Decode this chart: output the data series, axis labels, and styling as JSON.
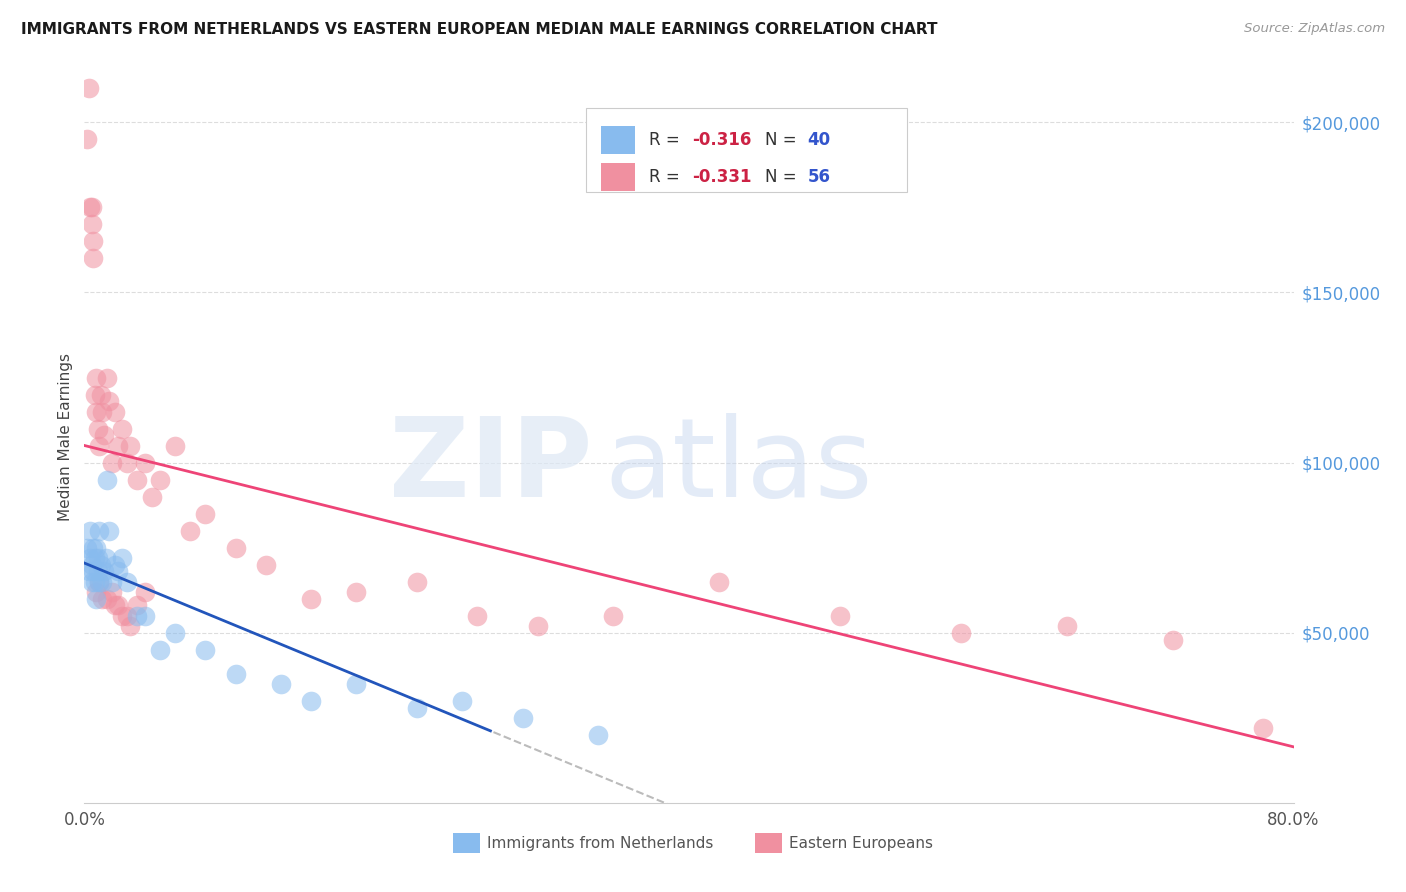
{
  "title": "IMMIGRANTS FROM NETHERLANDS VS EASTERN EUROPEAN MEDIAN MALE EARNINGS CORRELATION CHART",
  "source": "Source: ZipAtlas.com",
  "ylabel": "Median Male Earnings",
  "y_tick_labels": [
    "$200,000",
    "$150,000",
    "$100,000",
    "$50,000"
  ],
  "y_tick_values": [
    200000,
    150000,
    100000,
    50000
  ],
  "xlim": [
    0.0,
    0.8
  ],
  "ylim": [
    0,
    215000
  ],
  "blue_label": "Immigrants from Netherlands",
  "pink_label": "Eastern Europeans",
  "blue_R": "-0.316",
  "blue_N": "40",
  "pink_R": "-0.331",
  "pink_N": "56",
  "blue_color": "#88bbee",
  "pink_color": "#f090a0",
  "blue_line_color": "#2255bb",
  "pink_line_color": "#ee4477",
  "blue_scatter_x": [
    0.002,
    0.003,
    0.004,
    0.004,
    0.005,
    0.005,
    0.006,
    0.006,
    0.007,
    0.007,
    0.008,
    0.008,
    0.009,
    0.009,
    0.01,
    0.01,
    0.011,
    0.012,
    0.013,
    0.014,
    0.015,
    0.016,
    0.018,
    0.02,
    0.022,
    0.025,
    0.028,
    0.035,
    0.04,
    0.05,
    0.06,
    0.08,
    0.1,
    0.13,
    0.15,
    0.18,
    0.22,
    0.25,
    0.29,
    0.34
  ],
  "blue_scatter_y": [
    75000,
    68000,
    72000,
    80000,
    70000,
    65000,
    75000,
    68000,
    72000,
    65000,
    60000,
    75000,
    68000,
    72000,
    65000,
    80000,
    70000,
    65000,
    68000,
    72000,
    95000,
    80000,
    65000,
    70000,
    68000,
    72000,
    65000,
    55000,
    55000,
    45000,
    50000,
    45000,
    38000,
    35000,
    30000,
    35000,
    28000,
    30000,
    25000,
    20000
  ],
  "pink_scatter_x": [
    0.002,
    0.003,
    0.004,
    0.005,
    0.005,
    0.006,
    0.006,
    0.007,
    0.008,
    0.008,
    0.009,
    0.01,
    0.011,
    0.012,
    0.013,
    0.015,
    0.016,
    0.018,
    0.02,
    0.022,
    0.025,
    0.028,
    0.03,
    0.035,
    0.04,
    0.045,
    0.05,
    0.06,
    0.07,
    0.08,
    0.1,
    0.12,
    0.15,
    0.18,
    0.22,
    0.26,
    0.3,
    0.35,
    0.42,
    0.5,
    0.58,
    0.65,
    0.72,
    0.78,
    0.015,
    0.02,
    0.025,
    0.008,
    0.01,
    0.012,
    0.035,
    0.04,
    0.028,
    0.03,
    0.022,
    0.018
  ],
  "pink_scatter_y": [
    195000,
    210000,
    175000,
    170000,
    175000,
    165000,
    160000,
    120000,
    115000,
    125000,
    110000,
    105000,
    120000,
    115000,
    108000,
    125000,
    118000,
    100000,
    115000,
    105000,
    110000,
    100000,
    105000,
    95000,
    100000,
    90000,
    95000,
    105000,
    80000,
    85000,
    75000,
    70000,
    60000,
    62000,
    65000,
    55000,
    52000,
    55000,
    65000,
    55000,
    50000,
    52000,
    48000,
    22000,
    60000,
    58000,
    55000,
    62000,
    65000,
    60000,
    58000,
    62000,
    55000,
    52000,
    58000,
    62000
  ]
}
